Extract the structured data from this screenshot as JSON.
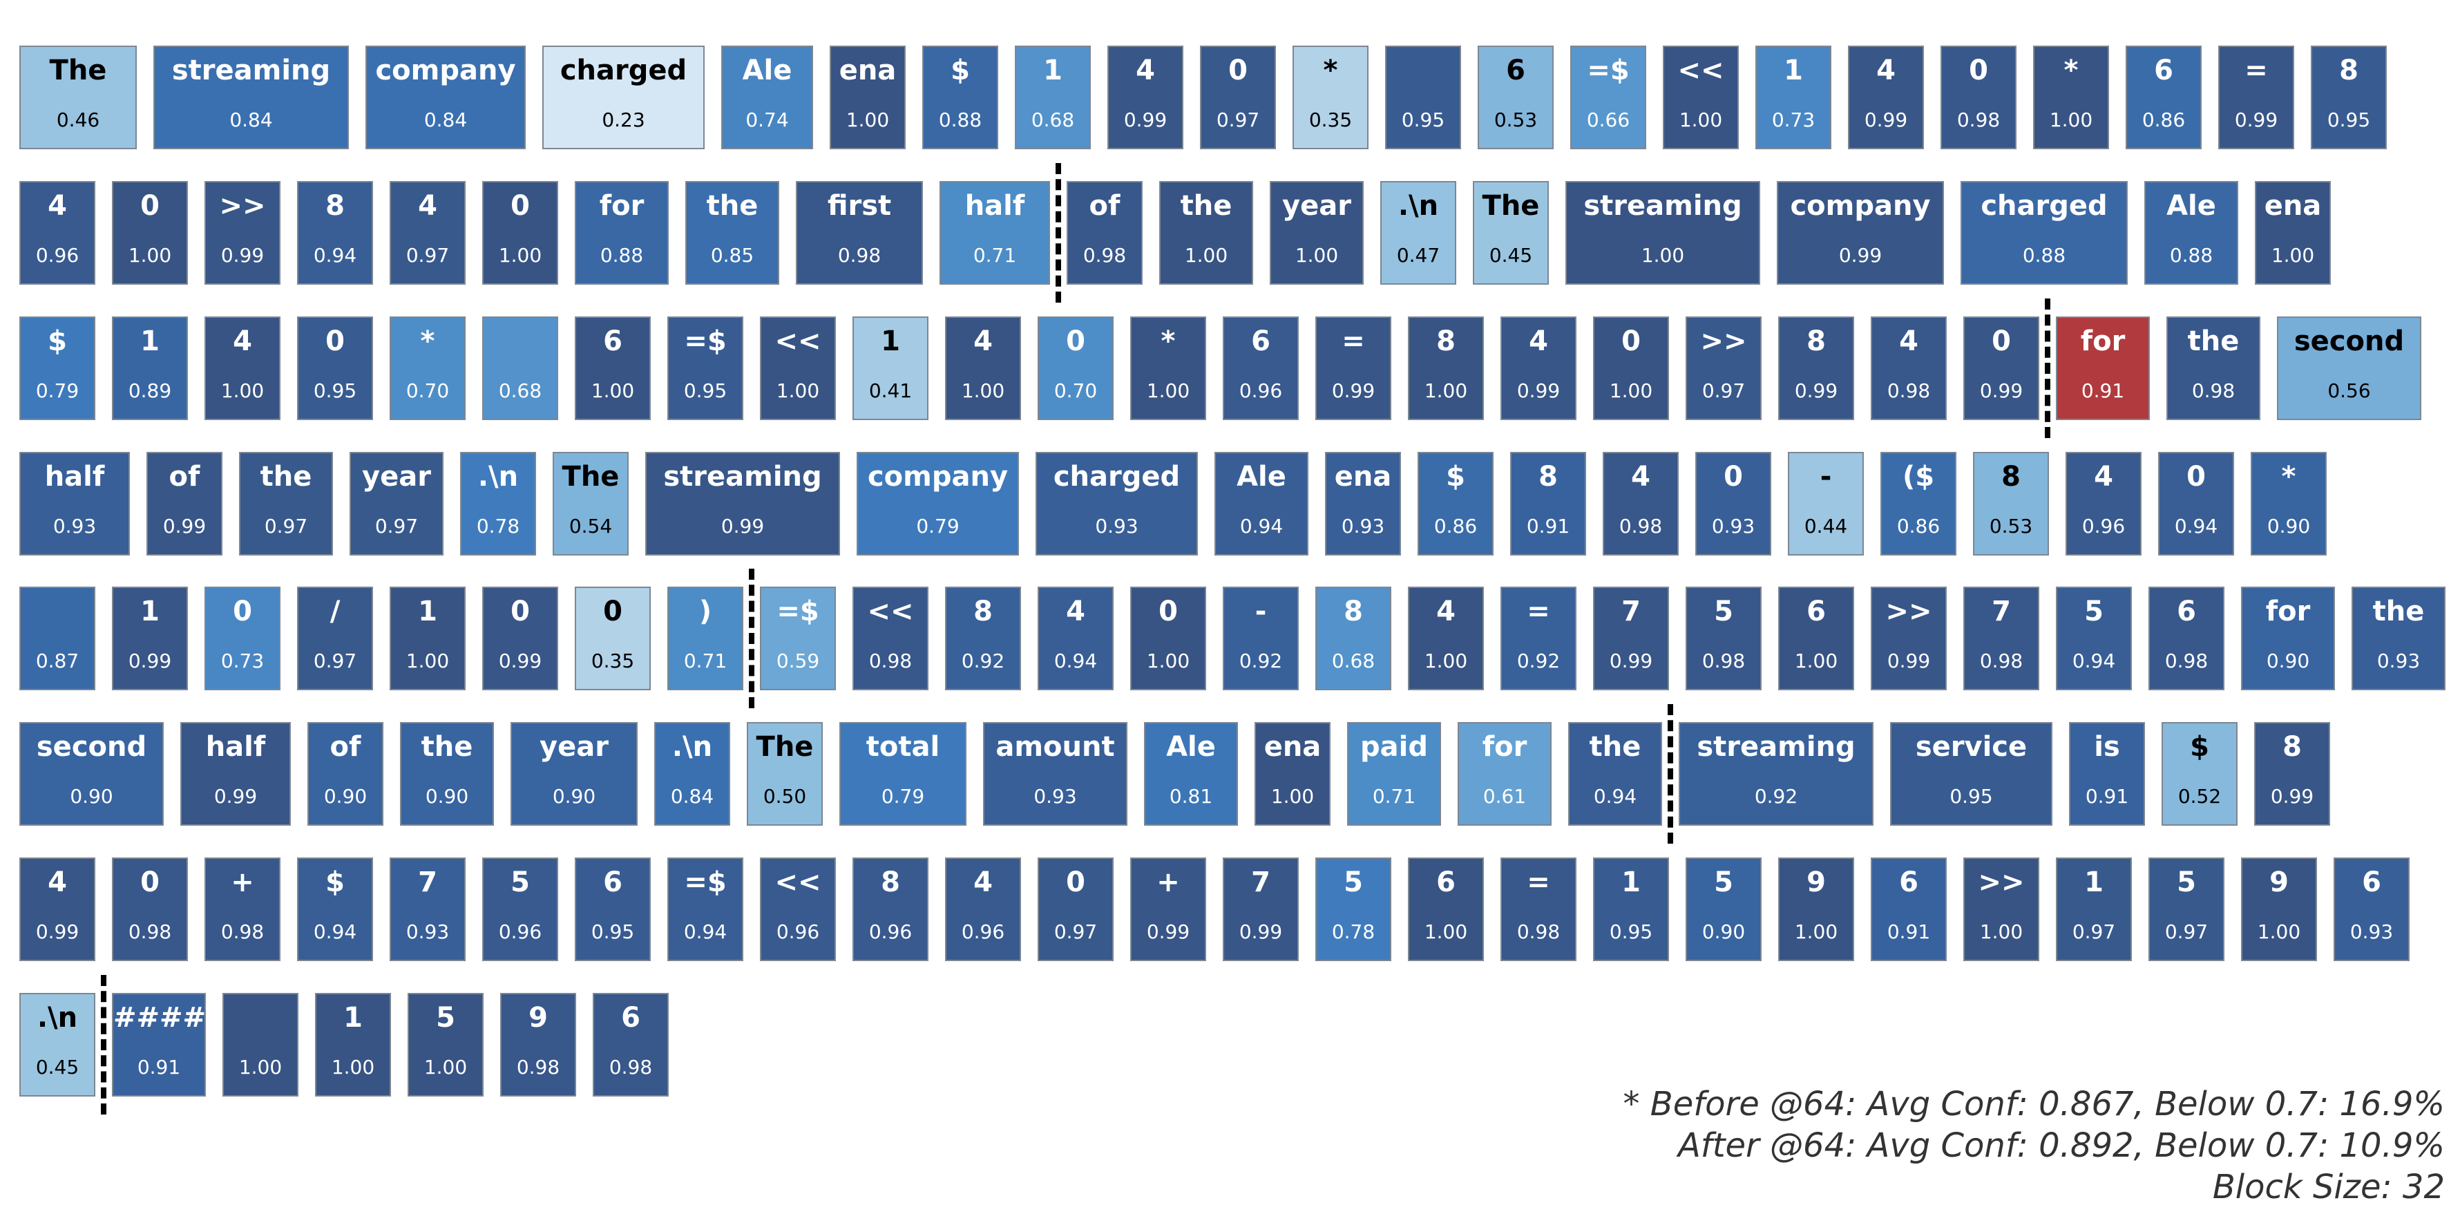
{
  "rows": [
    [
      {
        "t": "The",
        "c": "0.46",
        "v": 0.46
      },
      {
        "t": "streaming",
        "c": "0.84",
        "v": 0.84
      },
      {
        "t": "company",
        "c": "0.84",
        "v": 0.84
      },
      {
        "t": "charged",
        "c": "0.23",
        "v": 0.23
      },
      {
        "t": "Ale",
        "c": "0.74",
        "v": 0.74
      },
      {
        "t": "ena",
        "c": "1.00",
        "v": 1.0
      },
      {
        "t": "$",
        "c": "0.88",
        "v": 0.88
      },
      {
        "t": "1",
        "c": "0.68",
        "v": 0.68
      },
      {
        "t": "4",
        "c": "0.99",
        "v": 0.99
      },
      {
        "t": "0",
        "c": "0.97",
        "v": 0.97
      },
      {
        "t": "*",
        "c": "0.35",
        "v": 0.35
      },
      {
        "t": "",
        "c": "0.95",
        "v": 0.95
      },
      {
        "t": "6",
        "c": "0.53",
        "v": 0.53
      },
      {
        "t": "=$",
        "c": "0.66",
        "v": 0.66
      },
      {
        "t": "<<",
        "c": "1.00",
        "v": 1.0
      },
      {
        "t": "1",
        "c": "0.73",
        "v": 0.73
      },
      {
        "t": "4",
        "c": "0.99",
        "v": 0.99
      },
      {
        "t": "0",
        "c": "0.98",
        "v": 0.98
      },
      {
        "t": "*",
        "c": "1.00",
        "v": 1.0
      },
      {
        "t": "6",
        "c": "0.86",
        "v": 0.86
      },
      {
        "t": "=",
        "c": "0.99",
        "v": 0.99
      },
      {
        "t": "8",
        "c": "0.95",
        "v": 0.95
      }
    ],
    [
      {
        "t": "4",
        "c": "0.96",
        "v": 0.96
      },
      {
        "t": "0",
        "c": "1.00",
        "v": 1.0
      },
      {
        "t": ">>",
        "c": "0.99",
        "v": 0.99
      },
      {
        "t": "8",
        "c": "0.94",
        "v": 0.94
      },
      {
        "t": "4",
        "c": "0.97",
        "v": 0.97
      },
      {
        "t": "0",
        "c": "1.00",
        "v": 1.0
      },
      {
        "t": "for",
        "c": "0.88",
        "v": 0.88
      },
      {
        "t": "the",
        "c": "0.85",
        "v": 0.85
      },
      {
        "t": "first",
        "c": "0.98",
        "v": 0.98
      },
      {
        "t": "half",
        "c": "0.71",
        "v": 0.71
      },
      {
        "t": "of",
        "c": "0.98",
        "v": 0.98
      },
      {
        "t": "the",
        "c": "1.00",
        "v": 1.0
      },
      {
        "t": "year",
        "c": "1.00",
        "v": 1.0
      },
      {
        "t": ".\\n",
        "c": "0.47",
        "v": 0.47
      },
      {
        "t": "The",
        "c": "0.45",
        "v": 0.45
      },
      {
        "t": "streaming",
        "c": "1.00",
        "v": 1.0
      },
      {
        "t": "company",
        "c": "0.99",
        "v": 0.99
      },
      {
        "t": "charged",
        "c": "0.88",
        "v": 0.88
      },
      {
        "t": "Ale",
        "c": "0.88",
        "v": 0.88
      },
      {
        "t": "ena",
        "c": "1.00",
        "v": 1.0
      }
    ],
    [
      {
        "t": "$",
        "c": "0.79",
        "v": 0.79
      },
      {
        "t": "1",
        "c": "0.89",
        "v": 0.89
      },
      {
        "t": "4",
        "c": "1.00",
        "v": 1.0
      },
      {
        "t": "0",
        "c": "0.95",
        "v": 0.95
      },
      {
        "t": "*",
        "c": "0.70",
        "v": 0.7
      },
      {
        "t": "",
        "c": "0.68",
        "v": 0.68
      },
      {
        "t": "6",
        "c": "1.00",
        "v": 1.0
      },
      {
        "t": "=$",
        "c": "0.95",
        "v": 0.95
      },
      {
        "t": "<<",
        "c": "1.00",
        "v": 1.0
      },
      {
        "t": "1",
        "c": "0.41",
        "v": 0.41
      },
      {
        "t": "4",
        "c": "1.00",
        "v": 1.0
      },
      {
        "t": "0",
        "c": "0.70",
        "v": 0.7
      },
      {
        "t": "*",
        "c": "1.00",
        "v": 1.0
      },
      {
        "t": "6",
        "c": "0.96",
        "v": 0.96
      },
      {
        "t": "=",
        "c": "0.99",
        "v": 0.99
      },
      {
        "t": "8",
        "c": "1.00",
        "v": 1.0
      },
      {
        "t": "4",
        "c": "0.99",
        "v": 0.99
      },
      {
        "t": "0",
        "c": "1.00",
        "v": 1.0
      },
      {
        "t": ">>",
        "c": "0.97",
        "v": 0.97
      },
      {
        "t": "8",
        "c": "0.99",
        "v": 0.99
      },
      {
        "t": "4",
        "c": "0.98",
        "v": 0.98
      },
      {
        "t": "0",
        "c": "0.99",
        "v": 0.99
      },
      {
        "t": "for",
        "c": "0.91",
        "v": 0.91,
        "h": true
      },
      {
        "t": "the",
        "c": "0.98",
        "v": 0.98
      },
      {
        "t": "second",
        "c": "0.56",
        "v": 0.56
      }
    ],
    [
      {
        "t": "half",
        "c": "0.93",
        "v": 0.93
      },
      {
        "t": "of",
        "c": "0.99",
        "v": 0.99
      },
      {
        "t": "the",
        "c": "0.97",
        "v": 0.97
      },
      {
        "t": "year",
        "c": "0.97",
        "v": 0.97
      },
      {
        "t": ".\\n",
        "c": "0.78",
        "v": 0.78
      },
      {
        "t": "The",
        "c": "0.54",
        "v": 0.54
      },
      {
        "t": "streaming",
        "c": "0.99",
        "v": 0.99
      },
      {
        "t": "company",
        "c": "0.79",
        "v": 0.79
      },
      {
        "t": "charged",
        "c": "0.93",
        "v": 0.93
      },
      {
        "t": "Ale",
        "c": "0.94",
        "v": 0.94
      },
      {
        "t": "ena",
        "c": "0.93",
        "v": 0.93
      },
      {
        "t": "$",
        "c": "0.86",
        "v": 0.86
      },
      {
        "t": "8",
        "c": "0.91",
        "v": 0.91
      },
      {
        "t": "4",
        "c": "0.98",
        "v": 0.98
      },
      {
        "t": "0",
        "c": "0.93",
        "v": 0.93
      },
      {
        "t": "-",
        "c": "0.44",
        "v": 0.44
      },
      {
        "t": "($",
        "c": "0.86",
        "v": 0.86
      },
      {
        "t": "8",
        "c": "0.53",
        "v": 0.53
      },
      {
        "t": "4",
        "c": "0.96",
        "v": 0.96
      },
      {
        "t": "0",
        "c": "0.94",
        "v": 0.94
      },
      {
        "t": "*",
        "c": "0.90",
        "v": 0.9
      }
    ],
    [
      {
        "t": "",
        "c": "0.87",
        "v": 0.87
      },
      {
        "t": "1",
        "c": "0.99",
        "v": 0.99
      },
      {
        "t": "0",
        "c": "0.73",
        "v": 0.73
      },
      {
        "t": "/",
        "c": "0.97",
        "v": 0.97
      },
      {
        "t": "1",
        "c": "1.00",
        "v": 1.0
      },
      {
        "t": "0",
        "c": "0.99",
        "v": 0.99
      },
      {
        "t": "0",
        "c": "0.35",
        "v": 0.35
      },
      {
        "t": ")",
        "c": "0.71",
        "v": 0.71
      },
      {
        "t": "=$",
        "c": "0.59",
        "v": 0.59
      },
      {
        "t": "<<",
        "c": "0.98",
        "v": 0.98
      },
      {
        "t": "8",
        "c": "0.92",
        "v": 0.92
      },
      {
        "t": "4",
        "c": "0.94",
        "v": 0.94
      },
      {
        "t": "0",
        "c": "1.00",
        "v": 1.0
      },
      {
        "t": "-",
        "c": "0.92",
        "v": 0.92
      },
      {
        "t": "8",
        "c": "0.68",
        "v": 0.68
      },
      {
        "t": "4",
        "c": "1.00",
        "v": 1.0
      },
      {
        "t": "=",
        "c": "0.92",
        "v": 0.92
      },
      {
        "t": "7",
        "c": "0.99",
        "v": 0.99
      },
      {
        "t": "5",
        "c": "0.98",
        "v": 0.98
      },
      {
        "t": "6",
        "c": "1.00",
        "v": 1.0
      },
      {
        "t": ">>",
        "c": "0.99",
        "v": 0.99
      },
      {
        "t": "7",
        "c": "0.98",
        "v": 0.98
      },
      {
        "t": "5",
        "c": "0.94",
        "v": 0.94
      },
      {
        "t": "6",
        "c": "0.98",
        "v": 0.98
      },
      {
        "t": "for",
        "c": "0.90",
        "v": 0.9
      },
      {
        "t": "the",
        "c": "0.93",
        "v": 0.93
      }
    ],
    [
      {
        "t": "second",
        "c": "0.90",
        "v": 0.9
      },
      {
        "t": "half",
        "c": "0.99",
        "v": 0.99
      },
      {
        "t": "of",
        "c": "0.90",
        "v": 0.9
      },
      {
        "t": "the",
        "c": "0.90",
        "v": 0.9
      },
      {
        "t": "year",
        "c": "0.90",
        "v": 0.9
      },
      {
        "t": ".\\n",
        "c": "0.84",
        "v": 0.84
      },
      {
        "t": "The",
        "c": "0.50",
        "v": 0.5
      },
      {
        "t": "total",
        "c": "0.79",
        "v": 0.79
      },
      {
        "t": "amount",
        "c": "0.93",
        "v": 0.93
      },
      {
        "t": "Ale",
        "c": "0.81",
        "v": 0.81
      },
      {
        "t": "ena",
        "c": "1.00",
        "v": 1.0
      },
      {
        "t": "paid",
        "c": "0.71",
        "v": 0.71
      },
      {
        "t": "for",
        "c": "0.61",
        "v": 0.61
      },
      {
        "t": "the",
        "c": "0.94",
        "v": 0.94
      },
      {
        "t": "streaming",
        "c": "0.92",
        "v": 0.92
      },
      {
        "t": "service",
        "c": "0.95",
        "v": 0.95
      },
      {
        "t": "is",
        "c": "0.91",
        "v": 0.91
      },
      {
        "t": "$",
        "c": "0.52",
        "v": 0.52
      },
      {
        "t": "8",
        "c": "0.99",
        "v": 0.99
      }
    ],
    [
      {
        "t": "4",
        "c": "0.99",
        "v": 0.99
      },
      {
        "t": "0",
        "c": "0.98",
        "v": 0.98
      },
      {
        "t": "+",
        "c": "0.98",
        "v": 0.98
      },
      {
        "t": "$",
        "c": "0.94",
        "v": 0.94
      },
      {
        "t": "7",
        "c": "0.93",
        "v": 0.93
      },
      {
        "t": "5",
        "c": "0.96",
        "v": 0.96
      },
      {
        "t": "6",
        "c": "0.95",
        "v": 0.95
      },
      {
        "t": "=$",
        "c": "0.94",
        "v": 0.94
      },
      {
        "t": "<<",
        "c": "0.96",
        "v": 0.96
      },
      {
        "t": "8",
        "c": "0.96",
        "v": 0.96
      },
      {
        "t": "4",
        "c": "0.96",
        "v": 0.96
      },
      {
        "t": "0",
        "c": "0.97",
        "v": 0.97
      },
      {
        "t": "+",
        "c": "0.99",
        "v": 0.99
      },
      {
        "t": "7",
        "c": "0.99",
        "v": 0.99
      },
      {
        "t": "5",
        "c": "0.78",
        "v": 0.78
      },
      {
        "t": "6",
        "c": "1.00",
        "v": 1.0
      },
      {
        "t": "=",
        "c": "0.98",
        "v": 0.98
      },
      {
        "t": "1",
        "c": "0.95",
        "v": 0.95
      },
      {
        "t": "5",
        "c": "0.90",
        "v": 0.9
      },
      {
        "t": "9",
        "c": "1.00",
        "v": 1.0
      },
      {
        "t": "6",
        "c": "0.91",
        "v": 0.91
      },
      {
        "t": ">>",
        "c": "1.00",
        "v": 1.0
      },
      {
        "t": "1",
        "c": "0.97",
        "v": 0.97
      },
      {
        "t": "5",
        "c": "0.97",
        "v": 0.97
      },
      {
        "t": "9",
        "c": "1.00",
        "v": 1.0
      },
      {
        "t": "6",
        "c": "0.93",
        "v": 0.93
      }
    ],
    [
      {
        "t": ".\\n",
        "c": "0.45",
        "v": 0.45
      },
      {
        "t": "####",
        "c": "0.91",
        "v": 0.91
      },
      {
        "t": "",
        "c": "1.00",
        "v": 1.0
      },
      {
        "t": "1",
        "c": "1.00",
        "v": 1.0
      },
      {
        "t": "5",
        "c": "1.00",
        "v": 1.0
      },
      {
        "t": "9",
        "c": "0.98",
        "v": 0.98
      },
      {
        "t": "6",
        "c": "0.98",
        "v": 0.98
      }
    ]
  ],
  "notes": {
    "line1": "* Before @64: Avg Conf: 0.867, Below 0.7: 16.9%",
    "line2": "After @64: Avg Conf: 0.892, Below 0.7: 10.9%",
    "line3": "Block Size: 32"
  },
  "colors": {
    "highlight": "#b03a3e",
    "border": "#7d8793",
    "separator": "#000000"
  }
}
